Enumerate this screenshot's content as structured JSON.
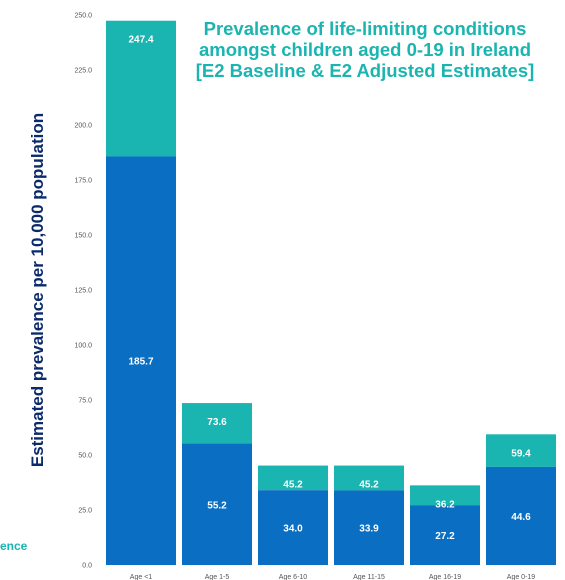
{
  "title_lines": [
    "Prevalence of life-limiting conditions",
    "amongst children aged 0-19 in Ireland",
    "[E2 Baseline & E2 Adjusted Estimates]"
  ],
  "side_note": "ence",
  "chart_data": {
    "type": "bar",
    "stacked": true,
    "title": "Prevalence of life-limiting conditions amongst children aged 0-19 in Ireland [E2 Baseline & E2 Adjusted Estimates]",
    "ylabel": "Estimated prevalence per 10,000 population",
    "xlabel": "",
    "ylim": [
      0,
      250
    ],
    "yticks": [
      "0.0",
      "25.0",
      "50.0",
      "75.0",
      "100.0",
      "125.0",
      "150.0",
      "175.0",
      "200.0",
      "225.0",
      "250.0"
    ],
    "categories": [
      "Age <1",
      "Age 1-5",
      "Age 6-10",
      "Age 11-15",
      "Age 16-19",
      "Age 0-19"
    ],
    "series": [
      {
        "name": "",
        "color": "#0a6fc2",
        "values": [
          185.7,
          55.2,
          34.0,
          33.9,
          27.2,
          44.6
        ],
        "labels": [
          "185.7",
          "55.2",
          "34.0",
          "33.9",
          "27.2",
          "44.6"
        ]
      },
      {
        "name": "",
        "color": "#1ab5b0",
        "totals": [
          247.4,
          73.6,
          45.2,
          45.2,
          36.2,
          59.4
        ],
        "labels": [
          "247.4",
          "73.6",
          "45.2",
          "45.2",
          "36.2",
          "59.4"
        ]
      }
    ],
    "grid": false,
    "legend": "none"
  }
}
